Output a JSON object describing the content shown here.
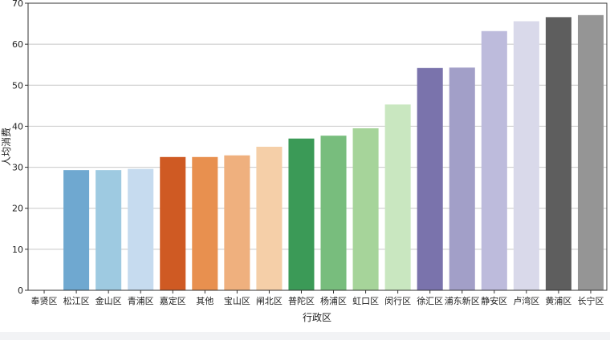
{
  "chart_data": {
    "type": "bar",
    "xlabel": "行政区",
    "ylabel": "人均消费",
    "ylim": [
      0,
      70
    ],
    "yticks": [
      0,
      10,
      20,
      30,
      40,
      50,
      60,
      70
    ],
    "grid": "horizontal",
    "categories": [
      "奉贤区",
      "松江区",
      "金山区",
      "青浦区",
      "嘉定区",
      "其他",
      "宝山区",
      "闸北区",
      "普陀区",
      "杨浦区",
      "虹口区",
      "闵行区",
      "徐汇区",
      "浦东新区",
      "静安区",
      "卢湾区",
      "黄浦区",
      "长宁区"
    ],
    "values": [
      0,
      29.3,
      29.3,
      29.6,
      32.5,
      32.5,
      32.9,
      35.0,
      37.0,
      37.7,
      39.5,
      45.3,
      54.2,
      54.3,
      63.2,
      65.6,
      66.6,
      67.1
    ],
    "colors": [
      "#3b6fb6",
      "#6fa8d0",
      "#9ecae1",
      "#c6dbef",
      "#cf5a23",
      "#e8904f",
      "#efb07e",
      "#f5cfa8",
      "#3b9a57",
      "#78bd7d",
      "#a6d49a",
      "#c9e7c0",
      "#7a73ac",
      "#a29fc8",
      "#bdbbdc",
      "#d9d9ea",
      "#5e5e5e",
      "#959595"
    ]
  }
}
